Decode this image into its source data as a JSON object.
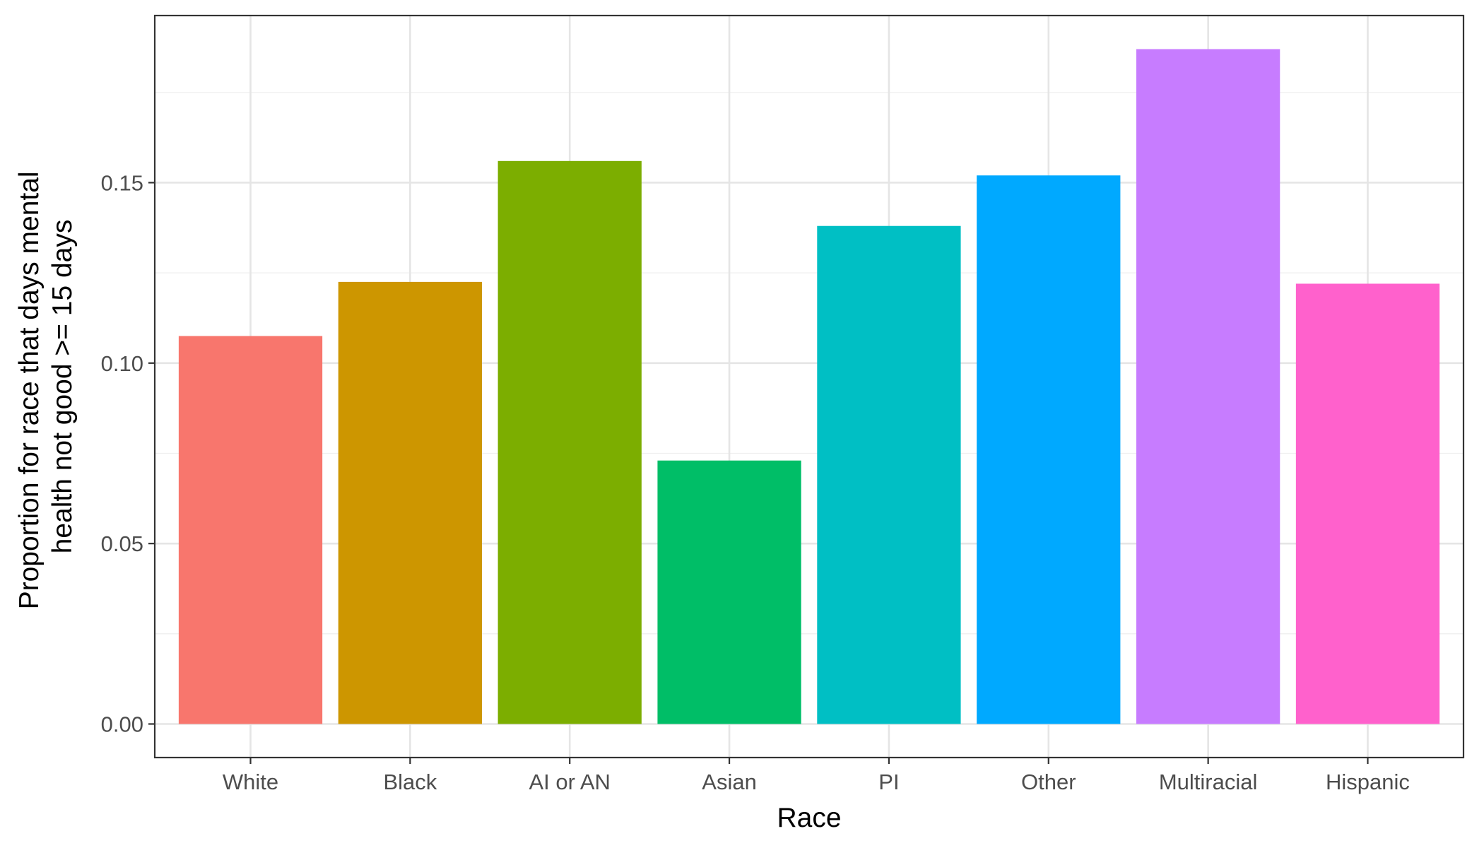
{
  "chart_data": {
    "type": "bar",
    "title": "",
    "xlabel": "Race",
    "ylabel_lines": [
      "Proportion for race that days mental",
      "health not good >= 15 days"
    ],
    "categories": [
      "White",
      "Black",
      "AI or AN",
      "Asian",
      "PI",
      "Other",
      "Multiracial",
      "Hispanic"
    ],
    "values": [
      0.1075,
      0.1225,
      0.156,
      0.073,
      0.138,
      0.152,
      0.187,
      0.122
    ],
    "colors": [
      "#F8766D",
      "#CD9600",
      "#7CAE00",
      "#00BE67",
      "#00BFC4",
      "#00A9FF",
      "#C77CFF",
      "#FF61CC"
    ],
    "ylim": [
      -0.0093,
      0.1963
    ],
    "yticks": [
      0,
      0.05,
      0.1,
      0.15
    ],
    "ytick_labels": [
      "0.00",
      "0.05",
      "0.10",
      "0.15"
    ],
    "grid": true,
    "legend": "none"
  }
}
